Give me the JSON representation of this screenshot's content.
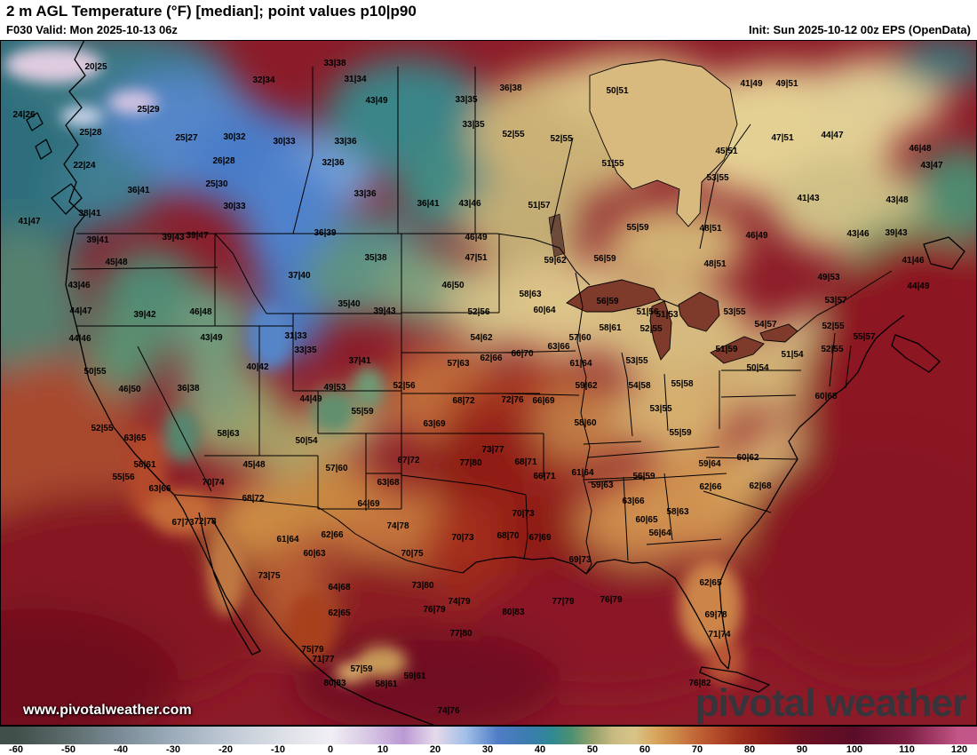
{
  "header": {
    "title": "2 m AGL Temperature (°F) [median]; point values p10|p90",
    "valid": "F030 Valid: Mon 2025-10-13 06z",
    "init": "Init: Sun 2025-10-12 00z EPS (OpenData)"
  },
  "map": {
    "watermark": "www.pivotalweather.com",
    "logo": "pivotal weather",
    "point_values": [
      [
        108,
        76,
        "20|25"
      ],
      [
        297,
        91,
        "32|34"
      ],
      [
        377,
        72,
        "33|38"
      ],
      [
        400,
        90,
        "31|34"
      ],
      [
        424,
        114,
        "43|49"
      ],
      [
        525,
        113,
        "33|35"
      ],
      [
        575,
        100,
        "36|38"
      ],
      [
        695,
        103,
        "50|51"
      ],
      [
        846,
        95,
        "41|49"
      ],
      [
        886,
        95,
        "49|51"
      ],
      [
        27,
        130,
        "24|26"
      ],
      [
        167,
        124,
        "25|29"
      ],
      [
        102,
        150,
        "25|28"
      ],
      [
        210,
        156,
        "25|27"
      ],
      [
        264,
        155,
        "30|32"
      ],
      [
        320,
        160,
        "30|33"
      ],
      [
        389,
        160,
        "33|36"
      ],
      [
        533,
        141,
        "33|35"
      ],
      [
        578,
        152,
        "52|55"
      ],
      [
        632,
        157,
        "52|55"
      ],
      [
        881,
        156,
        "47|51"
      ],
      [
        937,
        153,
        "44|47"
      ],
      [
        95,
        187,
        "22|24"
      ],
      [
        252,
        182,
        "26|28"
      ],
      [
        375,
        184,
        "32|36"
      ],
      [
        690,
        185,
        "51|55"
      ],
      [
        818,
        171,
        "45|51"
      ],
      [
        1036,
        168,
        "46|48"
      ],
      [
        1049,
        187,
        "43|47"
      ],
      [
        156,
        215,
        "36|41"
      ],
      [
        244,
        208,
        "25|30"
      ],
      [
        411,
        219,
        "33|36"
      ],
      [
        482,
        230,
        "36|41"
      ],
      [
        529,
        230,
        "43|46"
      ],
      [
        607,
        232,
        "51|57"
      ],
      [
        808,
        201,
        "53|55"
      ],
      [
        910,
        224,
        "41|43"
      ],
      [
        1010,
        226,
        "43|48"
      ],
      [
        101,
        241,
        "38|41"
      ],
      [
        33,
        250,
        "41|47"
      ],
      [
        264,
        233,
        "30|33"
      ],
      [
        195,
        268,
        "39|43"
      ],
      [
        366,
        263,
        "36|39"
      ],
      [
        536,
        268,
        "46|49"
      ],
      [
        718,
        257,
        "55|59"
      ],
      [
        800,
        258,
        "48|51"
      ],
      [
        852,
        266,
        "46|49"
      ],
      [
        966,
        264,
        "43|46"
      ],
      [
        1009,
        263,
        "39|43"
      ],
      [
        110,
        271,
        "39|41"
      ],
      [
        222,
        266,
        "39|47"
      ],
      [
        131,
        296,
        "45|48"
      ],
      [
        423,
        291,
        "35|38"
      ],
      [
        536,
        291,
        "47|51"
      ],
      [
        625,
        294,
        "59|62"
      ],
      [
        681,
        292,
        "56|59"
      ],
      [
        805,
        298,
        "48|51"
      ],
      [
        1028,
        294,
        "41|46"
      ],
      [
        89,
        322,
        "43|46"
      ],
      [
        337,
        311,
        "37|40"
      ],
      [
        510,
        322,
        "46|50"
      ],
      [
        597,
        332,
        "58|63"
      ],
      [
        933,
        313,
        "49|53"
      ],
      [
        1034,
        323,
        "44|49"
      ],
      [
        91,
        351,
        "44|47"
      ],
      [
        163,
        355,
        "39|42"
      ],
      [
        226,
        352,
        "46|48"
      ],
      [
        393,
        343,
        "35|40"
      ],
      [
        433,
        351,
        "39|43"
      ],
      [
        539,
        352,
        "52|56"
      ],
      [
        613,
        350,
        "60|64"
      ],
      [
        684,
        340,
        "56|59"
      ],
      [
        729,
        352,
        "51|56"
      ],
      [
        751,
        355,
        "51|53"
      ],
      [
        827,
        352,
        "53|55"
      ],
      [
        941,
        339,
        "53|57"
      ],
      [
        90,
        382,
        "44|46"
      ],
      [
        238,
        381,
        "43|49"
      ],
      [
        333,
        379,
        "31|33"
      ],
      [
        344,
        395,
        "33|35"
      ],
      [
        542,
        381,
        "54|62"
      ],
      [
        653,
        381,
        "57|60"
      ],
      [
        687,
        370,
        "58|61"
      ],
      [
        733,
        371,
        "52|55"
      ],
      [
        862,
        366,
        "54|57"
      ],
      [
        938,
        368,
        "52|55"
      ],
      [
        973,
        380,
        "55|57"
      ],
      [
        107,
        419,
        "50|55"
      ],
      [
        290,
        414,
        "40|42"
      ],
      [
        405,
        407,
        "37|41"
      ],
      [
        516,
        410,
        "57|63"
      ],
      [
        553,
        404,
        "62|66"
      ],
      [
        588,
        399,
        "66|70"
      ],
      [
        629,
        391,
        "63|66"
      ],
      [
        654,
        410,
        "61|64"
      ],
      [
        717,
        407,
        "53|55"
      ],
      [
        818,
        394,
        "51|59"
      ],
      [
        853,
        415,
        "50|54"
      ],
      [
        892,
        400,
        "51|54"
      ],
      [
        937,
        394,
        "52|55"
      ],
      [
        146,
        439,
        "46|50"
      ],
      [
        212,
        438,
        "36|38"
      ],
      [
        350,
        450,
        "44|49"
      ],
      [
        377,
        437,
        "49|53"
      ],
      [
        455,
        435,
        "52|56"
      ],
      [
        408,
        464,
        "55|59"
      ],
      [
        522,
        452,
        "68|72"
      ],
      [
        577,
        451,
        "72|76"
      ],
      [
        612,
        452,
        "66|69"
      ],
      [
        660,
        435,
        "59|62"
      ],
      [
        720,
        435,
        "54|58"
      ],
      [
        768,
        433,
        "55|58"
      ],
      [
        930,
        447,
        "60|68"
      ],
      [
        115,
        483,
        "52|55"
      ],
      [
        152,
        494,
        "63|65"
      ],
      [
        257,
        489,
        "58|63"
      ],
      [
        345,
        497,
        "50|54"
      ],
      [
        489,
        478,
        "63|69"
      ],
      [
        555,
        507,
        "73|77"
      ],
      [
        530,
        522,
        "77|80"
      ],
      [
        592,
        521,
        "68|71"
      ],
      [
        659,
        477,
        "58|60"
      ],
      [
        744,
        461,
        "53|55"
      ],
      [
        766,
        488,
        "55|59"
      ],
      [
        163,
        524,
        "58|61"
      ],
      [
        139,
        538,
        "55|56"
      ],
      [
        180,
        551,
        "63|66"
      ],
      [
        240,
        544,
        "70|74"
      ],
      [
        286,
        524,
        "45|48"
      ],
      [
        379,
        528,
        "57|60"
      ],
      [
        460,
        519,
        "67|72"
      ],
      [
        437,
        544,
        "63|68"
      ],
      [
        613,
        537,
        "66|71"
      ],
      [
        656,
        533,
        "61|64"
      ],
      [
        678,
        547,
        "59|63"
      ],
      [
        725,
        537,
        "56|59"
      ],
      [
        799,
        523,
        "59|64"
      ],
      [
        842,
        516,
        "60|62"
      ],
      [
        800,
        549,
        "62|66"
      ],
      [
        856,
        548,
        "62|68"
      ],
      [
        206,
        589,
        "67|73"
      ],
      [
        231,
        588,
        "72|78"
      ],
      [
        285,
        562,
        "68|72"
      ],
      [
        415,
        568,
        "64|69"
      ],
      [
        448,
        593,
        "74|78"
      ],
      [
        521,
        606,
        "70|73"
      ],
      [
        572,
        604,
        "68|70"
      ],
      [
        608,
        606,
        "67|69"
      ],
      [
        589,
        579,
        "70|73"
      ],
      [
        713,
        565,
        "63|66"
      ],
      [
        728,
        586,
        "60|65"
      ],
      [
        763,
        577,
        "58|63"
      ],
      [
        743,
        601,
        "56|64"
      ],
      [
        324,
        608,
        "61|64"
      ],
      [
        374,
        603,
        "62|66"
      ],
      [
        354,
        624,
        "60|63"
      ],
      [
        303,
        649,
        "73|75"
      ],
      [
        382,
        662,
        "64|68"
      ],
      [
        382,
        691,
        "62|65"
      ],
      [
        464,
        624,
        "70|75"
      ],
      [
        476,
        660,
        "73|80"
      ],
      [
        517,
        678,
        "74|79"
      ],
      [
        489,
        687,
        "76|79"
      ],
      [
        519,
        714,
        "77|80"
      ],
      [
        578,
        690,
        "80|83"
      ],
      [
        634,
        678,
        "77|79"
      ],
      [
        688,
        676,
        "76|79"
      ],
      [
        653,
        631,
        "69|73"
      ],
      [
        800,
        657,
        "62|65"
      ],
      [
        806,
        693,
        "69|78"
      ],
      [
        810,
        715,
        "71|74"
      ],
      [
        788,
        770,
        "76|82"
      ],
      [
        352,
        732,
        "75|79"
      ],
      [
        364,
        743,
        "71|77"
      ],
      [
        407,
        754,
        "57|59"
      ],
      [
        377,
        770,
        "80|83"
      ],
      [
        435,
        771,
        "58|61"
      ],
      [
        467,
        762,
        "59|61"
      ],
      [
        505,
        801,
        "74|76"
      ]
    ]
  },
  "colorbar": {
    "ticks": [
      "-60",
      "-50",
      "-40",
      "-30",
      "-20",
      "-10",
      "0",
      "10",
      "20",
      "30",
      "40",
      "50",
      "60",
      "70",
      "80",
      "90",
      "100",
      "110",
      "120"
    ],
    "stops": [
      {
        "t": -60,
        "c": "#414f4a"
      },
      {
        "t": -50,
        "c": "#5c6c6c"
      },
      {
        "t": -40,
        "c": "#7b8c98"
      },
      {
        "t": -30,
        "c": "#9cacba"
      },
      {
        "t": -20,
        "c": "#bec8d4"
      },
      {
        "t": -10,
        "c": "#dadee5"
      },
      {
        "t": 0,
        "c": "#f1eff4"
      },
      {
        "t": 8,
        "c": "#d4c2e2"
      },
      {
        "t": 14,
        "c": "#bb99d4"
      },
      {
        "t": 20,
        "c": "#e6d9ea"
      },
      {
        "t": 26,
        "c": "#9fbee8"
      },
      {
        "t": 32,
        "c": "#4f7cc6"
      },
      {
        "t": 38,
        "c": "#3a7cae"
      },
      {
        "t": 42,
        "c": "#2f8894"
      },
      {
        "t": 46,
        "c": "#4d9070"
      },
      {
        "t": 50,
        "c": "#93a06a"
      },
      {
        "t": 54,
        "c": "#c8ba82"
      },
      {
        "t": 58,
        "c": "#d8c488"
      },
      {
        "t": 62,
        "c": "#d8a65c"
      },
      {
        "t": 66,
        "c": "#cc8748"
      },
      {
        "t": 70,
        "c": "#c06336"
      },
      {
        "t": 74,
        "c": "#b04828"
      },
      {
        "t": 78,
        "c": "#9c2f1e"
      },
      {
        "t": 82,
        "c": "#8c1f1a"
      },
      {
        "t": 86,
        "c": "#7c161c"
      },
      {
        "t": 90,
        "c": "#6d1022"
      },
      {
        "t": 100,
        "c": "#5a0d28"
      },
      {
        "t": 110,
        "c": "#7c1e42"
      },
      {
        "t": 120,
        "c": "#c25688"
      }
    ]
  }
}
